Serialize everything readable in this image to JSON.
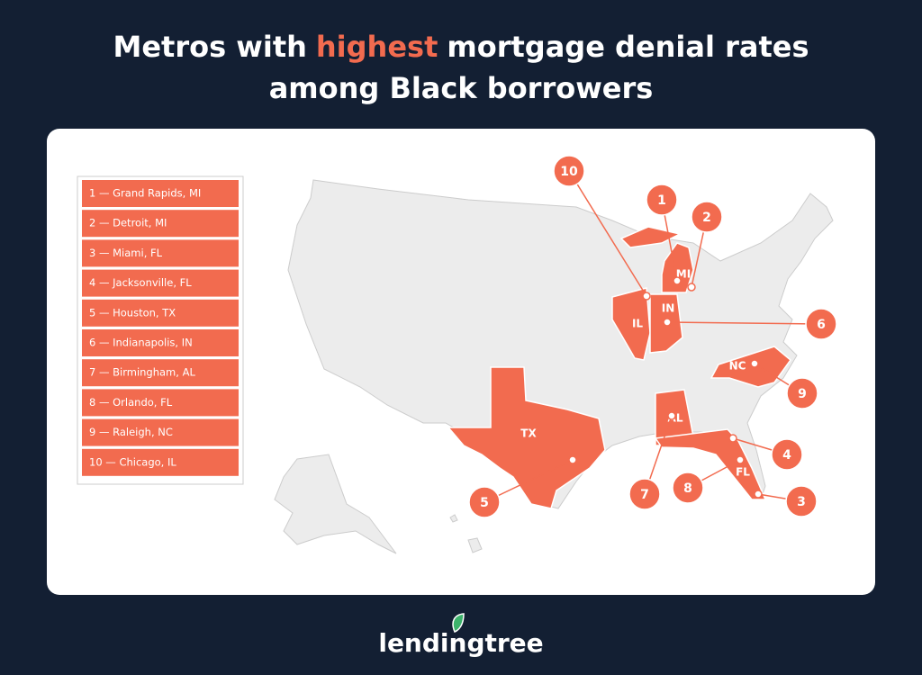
{
  "title": {
    "line1": [
      "Metros with",
      "highest",
      "mortgage denial rates"
    ],
    "line2": "among Black borrowers"
  },
  "legend": [
    "1 — Grand Rapids, MI",
    "2 — Detroit, MI",
    "3 — Miami, FL",
    "4 — Jacksonville, FL",
    "5 — Houston, TX",
    "6 — Indianapolis, IN",
    "7 — Birmingham, AL",
    "8 — Orlando, FL",
    "9 — Raleigh, NC",
    "10 — Chicago, IL"
  ],
  "states": [
    "MI",
    "IN",
    "IL",
    "NC",
    "AL",
    "TX",
    "FL"
  ],
  "markers": [
    "10",
    "1",
    "2",
    "6",
    "9",
    "4",
    "3",
    "8",
    "7",
    "5"
  ],
  "logo": "lendingtree"
}
